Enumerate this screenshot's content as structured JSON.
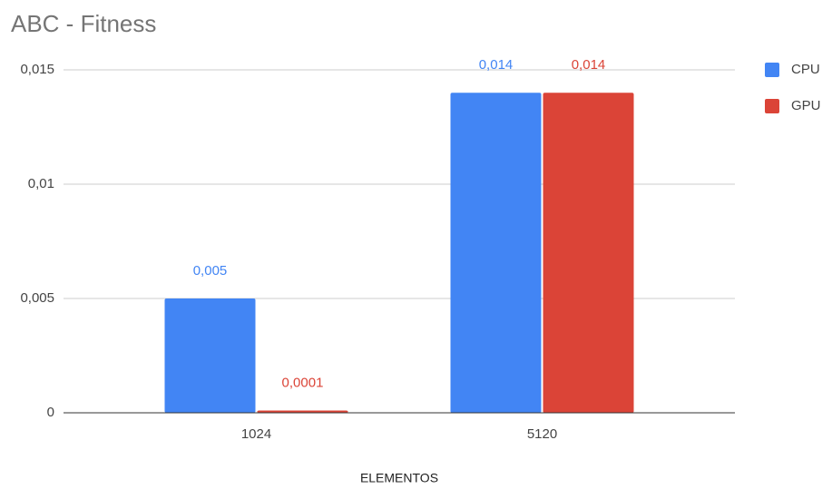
{
  "chart_data": {
    "type": "bar",
    "title": "ABC - Fitness",
    "x_label": "ELEMENTOS",
    "categories": [
      "1024",
      "5120"
    ],
    "series": [
      {
        "name": "CPU",
        "color": "#4285f4",
        "values": [
          0.005,
          0.014
        ],
        "value_labels": [
          "0,005",
          "0,014"
        ]
      },
      {
        "name": "GPU",
        "color": "#db4437",
        "values": [
          0.0001,
          0.014
        ],
        "value_labels": [
          "0,0001",
          "0,014"
        ]
      }
    ],
    "ylim": [
      0,
      0.015
    ],
    "yticks": [
      0,
      {
        "value": 0.005,
        "label": "0,005"
      },
      {
        "value": 0.01,
        "label": "0,01"
      },
      {
        "value": 0.015,
        "label": "0,015"
      }
    ],
    "grid": true,
    "legend": "right"
  }
}
